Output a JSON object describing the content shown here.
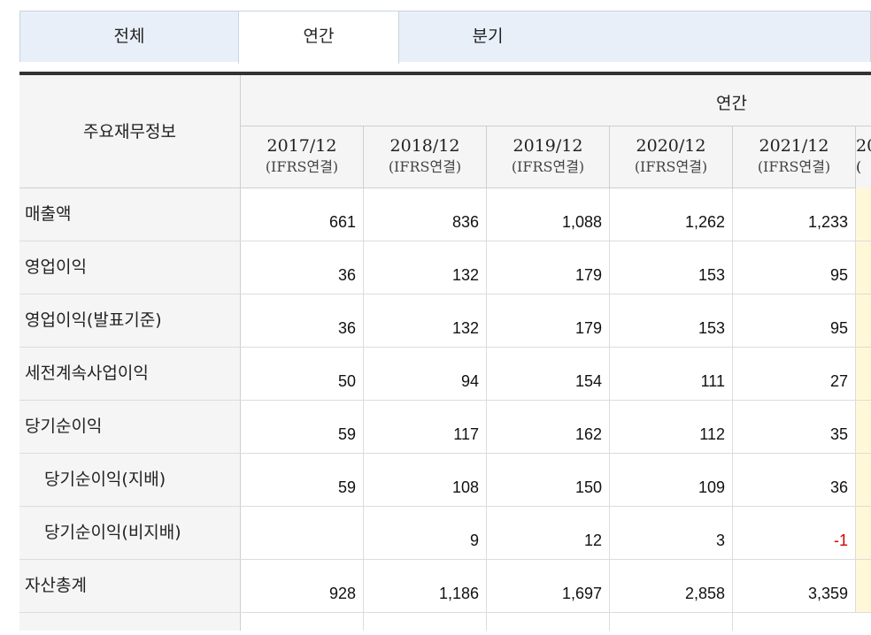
{
  "tabs": [
    {
      "label": "전체",
      "active": false
    },
    {
      "label": "연간",
      "active": true
    },
    {
      "label": "분기",
      "active": false
    }
  ],
  "table": {
    "corner_label": "주요재무정보",
    "group_label": "연간",
    "columns": [
      {
        "year": "2017/12",
        "sub": "(IFRS연결)"
      },
      {
        "year": "2018/12",
        "sub": "(IFRS연결)"
      },
      {
        "year": "2019/12",
        "sub": "(IFRS연결)"
      },
      {
        "year": "2020/12",
        "sub": "(IFRS연결)"
      },
      {
        "year": "2021/12",
        "sub": "(IFRS연결)"
      }
    ],
    "partial_column": {
      "year": "20",
      "sub": "("
    },
    "rows": [
      {
        "label": "매출액",
        "indent": false,
        "values": [
          "661",
          "836",
          "1,088",
          "1,262",
          "1,233"
        ]
      },
      {
        "label": "영업이익",
        "indent": false,
        "values": [
          "36",
          "132",
          "179",
          "153",
          "95"
        ]
      },
      {
        "label": "영업이익(발표기준)",
        "indent": false,
        "values": [
          "36",
          "132",
          "179",
          "153",
          "95"
        ]
      },
      {
        "label": "세전계속사업이익",
        "indent": false,
        "values": [
          "50",
          "94",
          "154",
          "111",
          "27"
        ]
      },
      {
        "label": "당기순이익",
        "indent": false,
        "values": [
          "59",
          "117",
          "162",
          "112",
          "35"
        ]
      },
      {
        "label": "당기순이익(지배)",
        "indent": true,
        "values": [
          "59",
          "108",
          "150",
          "109",
          "36"
        ]
      },
      {
        "label": "당기순이익(비지배)",
        "indent": true,
        "values": [
          "",
          "9",
          "12",
          "3",
          "-1"
        ]
      },
      {
        "label": "자산총계",
        "indent": false,
        "values": [
          "928",
          "1,186",
          "1,697",
          "2,858",
          "3,359"
        ]
      }
    ]
  },
  "colors": {
    "negative": "#d40000",
    "highlight": "#fff8d8",
    "header_bg": "#f5f5f5",
    "tab_bg": "#e9eff8"
  }
}
